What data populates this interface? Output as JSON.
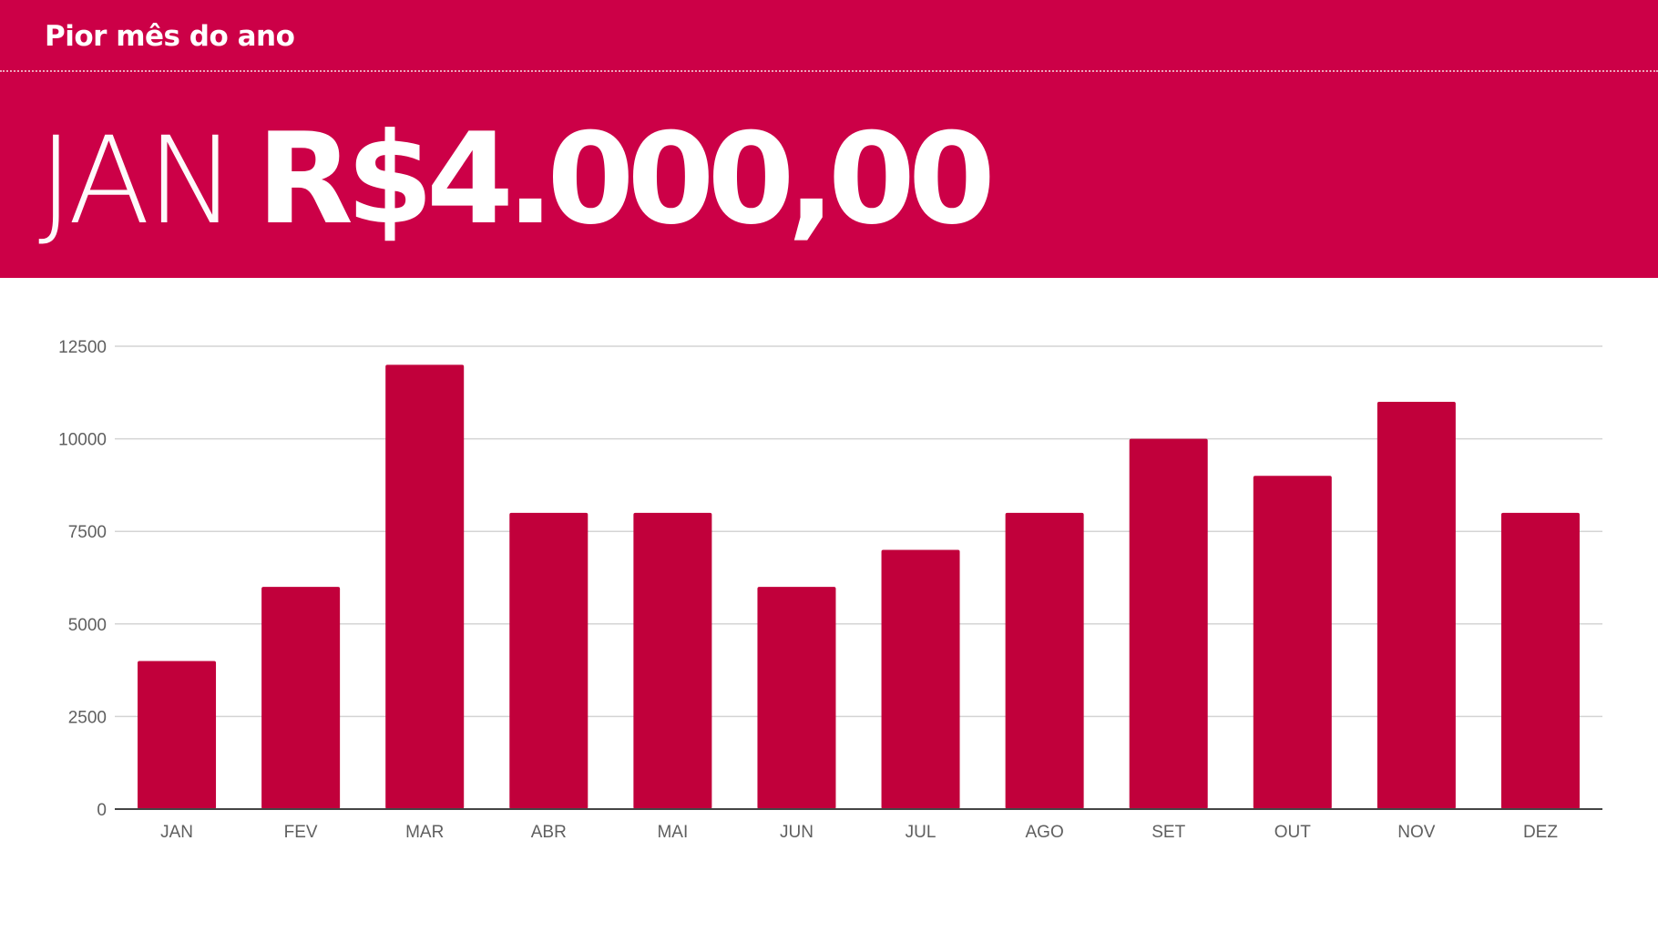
{
  "header": {
    "label": "Pior mês do ano",
    "month": "JAN",
    "value": "R$4.000,00"
  },
  "colors": {
    "header_bg": "#cc0047",
    "bar": "#c1003b",
    "grid": "#d4d4d4",
    "axis": "#444444"
  },
  "chart_data": {
    "type": "bar",
    "categories": [
      "JAN",
      "FEV",
      "MAR",
      "ABR",
      "MAI",
      "JUN",
      "JUL",
      "AGO",
      "SET",
      "OUT",
      "NOV",
      "DEZ"
    ],
    "values": [
      4000,
      6000,
      12000,
      8000,
      8000,
      6000,
      7000,
      8000,
      10000,
      9000,
      11000,
      8000
    ],
    "ylim": [
      0,
      12500
    ],
    "yticks": [
      0,
      2500,
      5000,
      7500,
      10000,
      12500
    ],
    "grid": true,
    "legend": "none",
    "title": "",
    "xlabel": "",
    "ylabel": ""
  }
}
